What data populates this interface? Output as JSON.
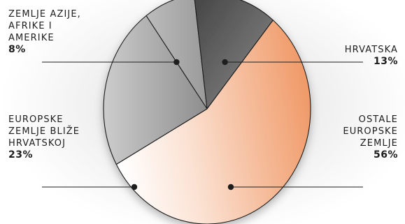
{
  "chart_data": {
    "type": "pie",
    "categories": [
      "ZEMLJE AZIJE,\nAFRIKE I\nAMERIKE",
      "HRVATSKA",
      "OSTALE\nEUROPSKE\nZEMLJE",
      "EUROPSKE\nZEMLJE BLIŽE\nHRVATSKOJ"
    ],
    "values": [
      8,
      13,
      56,
      23
    ],
    "value_labels": [
      "8%",
      "13%",
      "56%",
      "23%"
    ],
    "title": "",
    "legend": "none",
    "colors": {
      "zemlje_azije": [
        "#a8a8a8",
        "#bdbdbd"
      ],
      "hrvatska": [
        "#4a4a4a",
        "#8a8a8a"
      ],
      "ostale_europske": [
        "#ffffff",
        "#f2a273"
      ],
      "europske_blize": [
        "#cfcfcf",
        "#8f8f8f"
      ]
    }
  }
}
